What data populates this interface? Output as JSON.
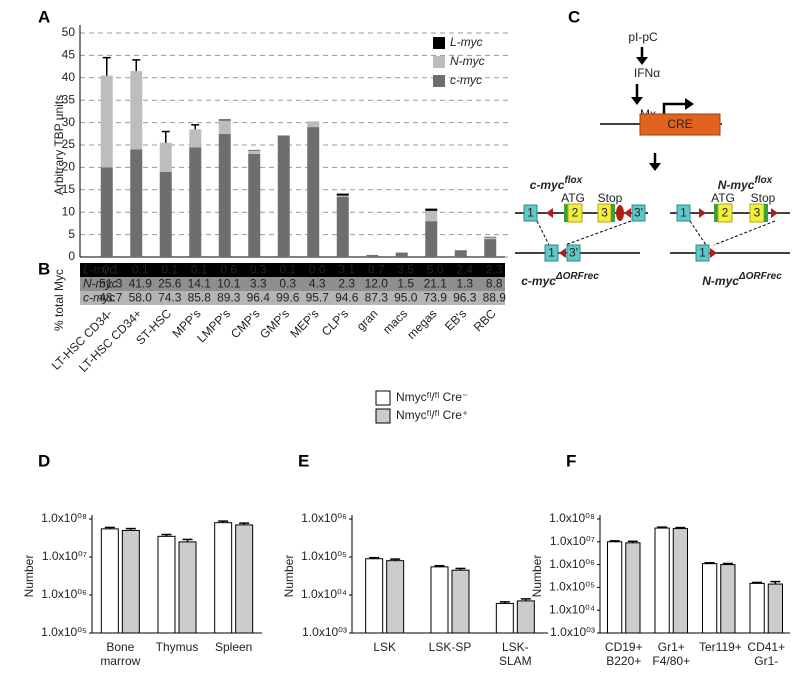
{
  "chart_data": [
    {
      "panel_label": "A",
      "type": "bar",
      "stacked": true,
      "ylabel": "Arbitrary TBP units",
      "categories": [
        "LT-HSC CD34-",
        "LT-HSC CD34+",
        "ST-HSC",
        "MPP's",
        "LMPP's",
        "CMP's",
        "GMP's",
        "MEP's",
        "CLP's",
        "gran",
        "macs",
        "megas",
        "EB's",
        "RBC"
      ],
      "series": [
        {
          "name": "c-myc",
          "color": "#6e6e6e",
          "values": [
            20,
            24,
            19,
            24.5,
            27.5,
            23,
            27.1,
            29,
            13.4,
            0.44,
            0.95,
            8,
            1.45,
            4
          ],
          "errors": [
            9,
            3.5,
            null,
            null,
            null,
            null,
            null,
            null,
            null,
            null,
            null,
            null,
            null,
            null
          ]
        },
        {
          "name": "N-myc",
          "color": "#bdbdbd",
          "values": [
            20.5,
            17.5,
            6.5,
            4,
            3,
            0.8,
            0.1,
            1.3,
            0.3,
            0.06,
            0.02,
            2.3,
            0.02,
            0.4
          ],
          "errors": [
            4,
            2.5,
            2.5,
            1,
            null,
            null,
            null,
            null,
            null,
            null,
            null,
            null,
            null,
            null
          ]
        },
        {
          "name": "L-myc",
          "color": "#000000",
          "values": [
            0,
            0,
            0,
            0,
            0.2,
            0.1,
            0,
            0,
            0.45,
            0,
            0.03,
            0.5,
            0.03,
            0.1
          ]
        }
      ],
      "ylim": [
        0,
        50
      ],
      "yticks": [
        0,
        5,
        10,
        15,
        20,
        25,
        30,
        35,
        40,
        45,
        50
      ],
      "grid": true,
      "legend": "upper right"
    },
    {
      "panel_label": "D",
      "type": "bar",
      "log_scale": true,
      "ylabel": "Number",
      "categories": [
        "Bone marrow",
        "Thymus",
        "Spleen"
      ],
      "series": [
        {
          "color": "#ffffff",
          "values": [
            55000000,
            35000000,
            80000000
          ],
          "errors": [
            5000000,
            4000000,
            8000000
          ]
        },
        {
          "color": "#cccccc",
          "values": [
            50000000,
            25000000,
            70000000
          ],
          "errors": [
            6000000,
            4000000,
            8000000
          ]
        }
      ],
      "ylim": [
        100000,
        100000000
      ],
      "yticks": [
        {
          "value": 100000,
          "label": "1.0x10⁰⁵"
        },
        {
          "value": 1000000,
          "label": "1.0x10⁰⁶"
        },
        {
          "value": 10000000,
          "label": "1.0x10⁰⁷"
        },
        {
          "value": 100000000,
          "label": "1.0x10⁰⁸"
        }
      ]
    },
    {
      "panel_label": "E",
      "type": "bar",
      "log_scale": true,
      "ylabel": "Number",
      "categories": [
        "LSK",
        "LSK-SP",
        "LSK-SLAM"
      ],
      "series": [
        {
          "name": "Nmycᶠˡ/ᶠˡ Cre⁻",
          "color": "#ffffff",
          "values": [
            90000,
            55000,
            6000
          ],
          "errors": [
            6000,
            4000,
            600
          ]
        },
        {
          "name": "Nmycᶠˡ/ᶠˡ Cre⁺",
          "color": "#cccccc",
          "values": [
            80000,
            45000,
            7000
          ],
          "errors": [
            8000,
            5000,
            900
          ]
        }
      ],
      "ylim": [
        1000,
        1000000
      ],
      "yticks": [
        {
          "value": 1000,
          "label": "1.0x10⁰³"
        },
        {
          "value": 10000,
          "label": "1.0x10⁰⁴"
        },
        {
          "value": 100000,
          "label": "1.0x10⁰⁵"
        },
        {
          "value": 1000000,
          "label": "1.0x10⁰⁶"
        }
      ],
      "legend": "above"
    },
    {
      "panel_label": "F",
      "type": "bar",
      "log_scale": true,
      "ylabel": "Number",
      "categories": [
        "CD19+ B220+",
        "Gr1+ F4/80+",
        "Ter119+",
        "CD41+ Gr1-"
      ],
      "series": [
        {
          "color": "#ffffff",
          "values": [
            10000000,
            40000000,
            1100000,
            150000
          ],
          "errors": [
            1000000,
            4000000,
            100000,
            15000
          ]
        },
        {
          "color": "#cccccc",
          "values": [
            9000000,
            38000000,
            1000000,
            140000
          ],
          "errors": [
            1500000,
            4000000,
            120000,
            40000
          ]
        }
      ],
      "ylim": [
        1000,
        100000000
      ],
      "yticks": [
        {
          "value": 1000,
          "label": "1.0x10⁰³"
        },
        {
          "value": 10000,
          "label": "1.0x10⁰⁴"
        },
        {
          "value": 100000,
          "label": "1.0x10⁰⁵"
        },
        {
          "value": 1000000,
          "label": "1.0x10⁰⁶"
        },
        {
          "value": 10000000,
          "label": "1.0x10⁰⁷"
        },
        {
          "value": 100000000,
          "label": "1.0x10⁰⁸"
        }
      ]
    }
  ],
  "table": {
    "panel_label": "B",
    "label": "% total Myc",
    "rows": [
      {
        "name": "L-myc",
        "values": [
          "0.1",
          "0.1",
          "0.1",
          "0.1",
          "0.6",
          "0.3",
          "0.1",
          "0.0",
          "3.1",
          "0.7",
          "3.5",
          "5.0",
          "2.4",
          "2.3"
        ]
      },
      {
        "name": "N-myc",
        "values": [
          "51.3",
          "41.9",
          "25.6",
          "14.1",
          "10.1",
          "3.3",
          "0.3",
          "4.3",
          "2.3",
          "12.0",
          "1.5",
          "21.1",
          "1.3",
          "8.8"
        ]
      },
      {
        "name": "c-myc",
        "values": [
          "48.7",
          "58.0",
          "74.3",
          "85.8",
          "89.3",
          "96.4",
          "99.6",
          "95.7",
          "94.6",
          "87.3",
          "95.0",
          "73.9",
          "96.3",
          "88.9"
        ]
      }
    ]
  },
  "diagram": {
    "panel_label": "C",
    "inducer": "pI-pC",
    "signal": "IFNα",
    "promoter": "Mx",
    "gene": "CRE",
    "constructs": [
      {
        "name": "c-myc",
        "sup": "flox",
        "exons": [
          "1",
          "2",
          "3",
          "3'"
        ],
        "start": "ATG",
        "stop": "Stop"
      },
      {
        "name": "N-myc",
        "sup": "flox",
        "exons": [
          "1",
          "2",
          "3"
        ],
        "start": "ATG",
        "stop": "Stop"
      }
    ],
    "recombined": [
      {
        "name": "c-myc",
        "sup": "ΔORFrec",
        "exons": [
          "1",
          "3'"
        ]
      },
      {
        "name": "N-myc",
        "sup": "ΔORFrec",
        "exons": [
          "1"
        ]
      }
    ]
  }
}
